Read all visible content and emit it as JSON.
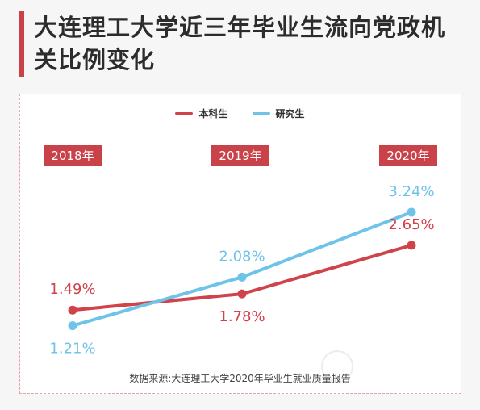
{
  "title": "大连理工大学近三年毕业生流向党政机关比例变化",
  "source": "数据来源:大连理工大学2020年毕业生就业质量报告",
  "chart_data": {
    "type": "line",
    "categories": [
      "2018年",
      "2019年",
      "2020年"
    ],
    "series": [
      {
        "name": "本科生",
        "values": [
          1.49,
          1.78,
          2.65
        ],
        "labels": [
          "1.49%",
          "1.78%",
          "2.65%"
        ],
        "color": "#d1434b"
      },
      {
        "name": "研究生",
        "values": [
          1.21,
          2.08,
          3.24
        ],
        "labels": [
          "1.21%",
          "2.08%",
          "3.24%"
        ],
        "color": "#6ec3e8"
      }
    ],
    "ylim": [
      0.8,
      3.5
    ],
    "grid": false,
    "legend": "top-center"
  }
}
